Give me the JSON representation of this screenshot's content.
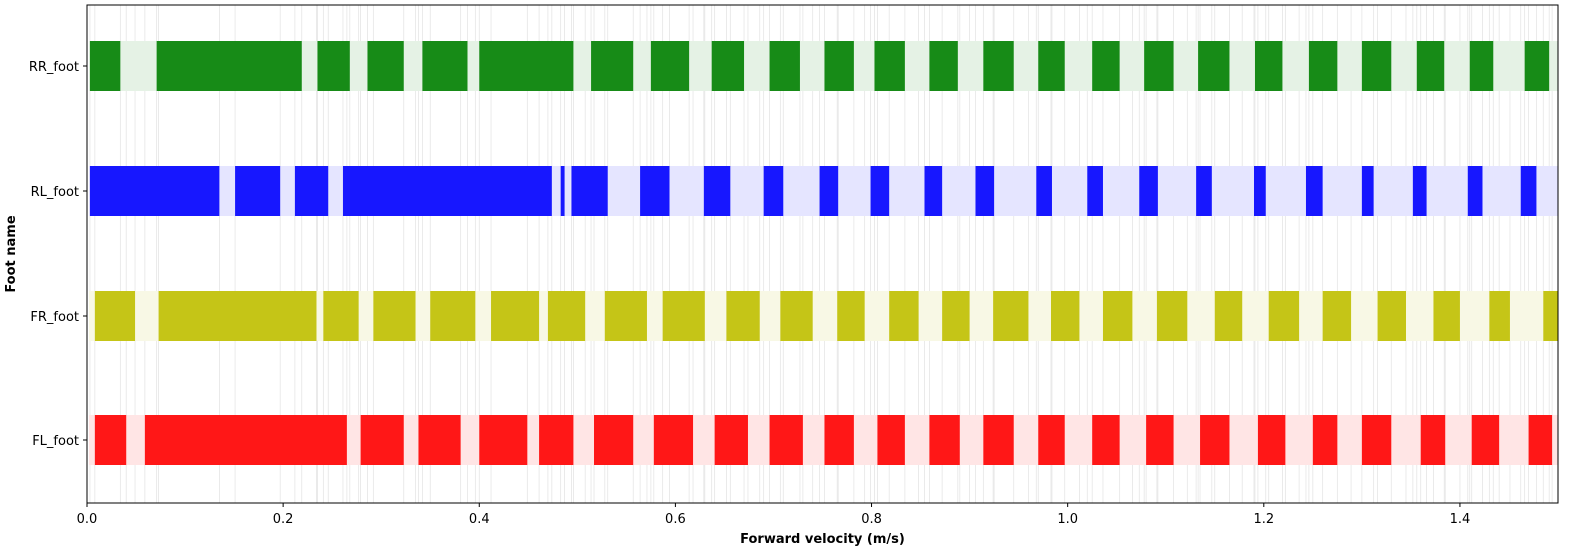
{
  "chart_data": {
    "type": "bar",
    "title": "",
    "xlabel": "Forward velocity (m/s)",
    "ylabel": "Foot name",
    "xlim": [
      0.0,
      1.5
    ],
    "x_ticks": [
      0.0,
      0.2,
      0.4,
      0.6,
      0.8,
      1.0,
      1.2,
      1.4
    ],
    "x_tick_labels": [
      "0.0",
      "0.2",
      "0.4",
      "0.6",
      "0.8",
      "1.0",
      "1.2",
      "1.4"
    ],
    "grid": "vertical lines at contact-phase boundaries",
    "series": [
      {
        "name": "RR_foot",
        "color": "#008000",
        "background_color": "#e5f2e5",
        "intervals": [
          [
            0.003,
            0.034
          ],
          [
            0.071,
            0.219
          ],
          [
            0.235,
            0.268
          ],
          [
            0.286,
            0.323
          ],
          [
            0.342,
            0.388
          ],
          [
            0.4,
            0.496
          ],
          [
            0.514,
            0.557
          ],
          [
            0.575,
            0.614
          ],
          [
            0.637,
            0.67
          ],
          [
            0.696,
            0.727
          ],
          [
            0.752,
            0.782
          ],
          [
            0.803,
            0.834
          ],
          [
            0.859,
            0.888
          ],
          [
            0.914,
            0.945
          ],
          [
            0.97,
            0.997
          ],
          [
            1.025,
            1.053
          ],
          [
            1.078,
            1.108
          ],
          [
            1.133,
            1.165
          ],
          [
            1.191,
            1.219
          ],
          [
            1.246,
            1.275
          ],
          [
            1.3,
            1.33
          ],
          [
            1.356,
            1.384
          ],
          [
            1.41,
            1.434
          ],
          [
            1.466,
            1.491
          ]
        ]
      },
      {
        "name": "RL_foot",
        "color": "#0000ff",
        "background_color": "#e5e5ff",
        "intervals": [
          [
            0.003,
            0.135
          ],
          [
            0.151,
            0.197
          ],
          [
            0.212,
            0.246
          ],
          [
            0.261,
            0.474
          ],
          [
            0.483,
            0.487
          ],
          [
            0.494,
            0.531
          ],
          [
            0.564,
            0.594
          ],
          [
            0.629,
            0.656
          ],
          [
            0.69,
            0.71
          ],
          [
            0.747,
            0.766
          ],
          [
            0.799,
            0.818
          ],
          [
            0.854,
            0.872
          ],
          [
            0.906,
            0.925
          ],
          [
            0.968,
            0.984
          ],
          [
            1.02,
            1.036
          ],
          [
            1.073,
            1.092
          ],
          [
            1.131,
            1.147
          ],
          [
            1.19,
            1.202
          ],
          [
            1.243,
            1.26
          ],
          [
            1.3,
            1.312
          ],
          [
            1.352,
            1.366
          ],
          [
            1.408,
            1.423
          ],
          [
            1.462,
            1.478
          ]
        ]
      },
      {
        "name": "FR_foot",
        "color": "#bfbf00",
        "background_color": "#f8f8e5",
        "intervals": [
          [
            0.008,
            0.049
          ],
          [
            0.073,
            0.234
          ],
          [
            0.241,
            0.277
          ],
          [
            0.292,
            0.335
          ],
          [
            0.35,
            0.396
          ],
          [
            0.412,
            0.461
          ],
          [
            0.47,
            0.508
          ],
          [
            0.528,
            0.571
          ],
          [
            0.587,
            0.63
          ],
          [
            0.652,
            0.686
          ],
          [
            0.707,
            0.74
          ],
          [
            0.765,
            0.793
          ],
          [
            0.818,
            0.848
          ],
          [
            0.872,
            0.9
          ],
          [
            0.924,
            0.96
          ],
          [
            0.983,
            1.012
          ],
          [
            1.036,
            1.066
          ],
          [
            1.091,
            1.122
          ],
          [
            1.15,
            1.178
          ],
          [
            1.205,
            1.236
          ],
          [
            1.26,
            1.289
          ],
          [
            1.316,
            1.345
          ],
          [
            1.373,
            1.4
          ],
          [
            1.43,
            1.451
          ],
          [
            1.485,
            1.5
          ]
        ]
      },
      {
        "name": "FL_foot",
        "color": "#ff0000",
        "background_color": "#ffe5e5",
        "intervals": [
          [
            0.008,
            0.04
          ],
          [
            0.059,
            0.265
          ],
          [
            0.279,
            0.323
          ],
          [
            0.338,
            0.381
          ],
          [
            0.4,
            0.449
          ],
          [
            0.461,
            0.496
          ],
          [
            0.517,
            0.557
          ],
          [
            0.578,
            0.618
          ],
          [
            0.64,
            0.674
          ],
          [
            0.696,
            0.73
          ],
          [
            0.752,
            0.782
          ],
          [
            0.806,
            0.834
          ],
          [
            0.859,
            0.89
          ],
          [
            0.914,
            0.945
          ],
          [
            0.97,
            0.997
          ],
          [
            1.025,
            1.053
          ],
          [
            1.08,
            1.108
          ],
          [
            1.135,
            1.165
          ],
          [
            1.194,
            1.222
          ],
          [
            1.25,
            1.275
          ],
          [
            1.3,
            1.33
          ],
          [
            1.36,
            1.385
          ],
          [
            1.412,
            1.44
          ],
          [
            1.47,
            1.494
          ]
        ]
      }
    ]
  }
}
